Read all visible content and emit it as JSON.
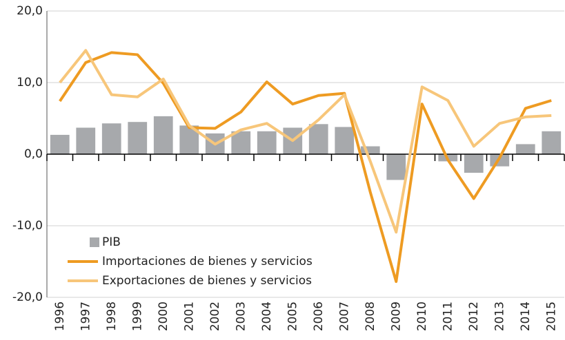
{
  "chart_data": {
    "type": "bar_line",
    "categories": [
      "1996",
      "1997",
      "1998",
      "1999",
      "2000",
      "2001",
      "2002",
      "2003",
      "2004",
      "2005",
      "2006",
      "2007",
      "2008",
      "2009",
      "2010",
      "2011",
      "2012",
      "2013",
      "2014",
      "2015"
    ],
    "series": [
      {
        "name": "PIB",
        "type": "bar",
        "color": "#a7a9ac",
        "values": [
          2.7,
          3.7,
          4.3,
          4.5,
          5.3,
          4.0,
          2.9,
          3.2,
          3.2,
          3.7,
          4.2,
          3.8,
          1.1,
          -3.6,
          0.0,
          -1.0,
          -2.6,
          -1.7,
          1.4,
          3.2
        ]
      },
      {
        "name": "Importaciones de bienes y servicios",
        "type": "line",
        "color": "#ee9b22",
        "values": [
          7.4,
          12.8,
          14.2,
          13.9,
          9.9,
          3.7,
          3.6,
          5.9,
          10.1,
          7.0,
          8.2,
          8.5,
          -5.3,
          -17.8,
          7.0,
          -0.8,
          -6.2,
          -0.5,
          6.4,
          7.5
        ]
      },
      {
        "name": "Exportaciones de bienes y servicios",
        "type": "line",
        "color": "#f7c67a",
        "values": [
          10.0,
          14.5,
          8.3,
          8.0,
          10.5,
          4.0,
          1.4,
          3.4,
          4.3,
          1.9,
          4.8,
          8.3,
          -1.0,
          -10.9,
          9.4,
          7.5,
          1.1,
          4.3,
          5.2,
          5.4
        ]
      }
    ],
    "ylim": [
      -20,
      20
    ],
    "yticks": [
      {
        "value": -20,
        "label": "-20,0"
      },
      {
        "value": -10,
        "label": "-10,0"
      },
      {
        "value": 0,
        "label": "0,0"
      },
      {
        "value": 10,
        "label": "10,0"
      },
      {
        "value": 20,
        "label": "20,0"
      }
    ],
    "grid": true,
    "legend": "lower left"
  }
}
